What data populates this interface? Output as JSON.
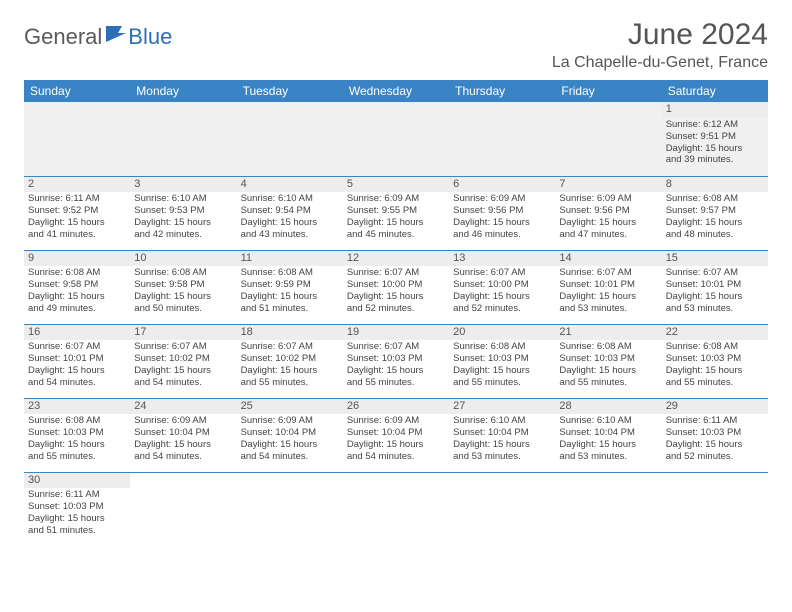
{
  "logo": {
    "part1": "General",
    "part2": "Blue"
  },
  "title": "June 2024",
  "location": "La Chapelle-du-Genet, France",
  "colors": {
    "header_bg": "#3a84c6",
    "header_text": "#ffffff",
    "logo_gray": "#5a5a5a",
    "logo_blue": "#2d6fb5",
    "border": "#3a84c6",
    "daynum_bg": "#ededed"
  },
  "weekdays": [
    "Sunday",
    "Monday",
    "Tuesday",
    "Wednesday",
    "Thursday",
    "Friday",
    "Saturday"
  ],
  "weeks": [
    [
      null,
      null,
      null,
      null,
      null,
      null,
      {
        "n": "1",
        "sr": "Sunrise: 6:12 AM",
        "ss": "Sunset: 9:51 PM",
        "d1": "Daylight: 15 hours",
        "d2": "and 39 minutes."
      }
    ],
    [
      {
        "n": "2",
        "sr": "Sunrise: 6:11 AM",
        "ss": "Sunset: 9:52 PM",
        "d1": "Daylight: 15 hours",
        "d2": "and 41 minutes."
      },
      {
        "n": "3",
        "sr": "Sunrise: 6:10 AM",
        "ss": "Sunset: 9:53 PM",
        "d1": "Daylight: 15 hours",
        "d2": "and 42 minutes."
      },
      {
        "n": "4",
        "sr": "Sunrise: 6:10 AM",
        "ss": "Sunset: 9:54 PM",
        "d1": "Daylight: 15 hours",
        "d2": "and 43 minutes."
      },
      {
        "n": "5",
        "sr": "Sunrise: 6:09 AM",
        "ss": "Sunset: 9:55 PM",
        "d1": "Daylight: 15 hours",
        "d2": "and 45 minutes."
      },
      {
        "n": "6",
        "sr": "Sunrise: 6:09 AM",
        "ss": "Sunset: 9:56 PM",
        "d1": "Daylight: 15 hours",
        "d2": "and 46 minutes."
      },
      {
        "n": "7",
        "sr": "Sunrise: 6:09 AM",
        "ss": "Sunset: 9:56 PM",
        "d1": "Daylight: 15 hours",
        "d2": "and 47 minutes."
      },
      {
        "n": "8",
        "sr": "Sunrise: 6:08 AM",
        "ss": "Sunset: 9:57 PM",
        "d1": "Daylight: 15 hours",
        "d2": "and 48 minutes."
      }
    ],
    [
      {
        "n": "9",
        "sr": "Sunrise: 6:08 AM",
        "ss": "Sunset: 9:58 PM",
        "d1": "Daylight: 15 hours",
        "d2": "and 49 minutes."
      },
      {
        "n": "10",
        "sr": "Sunrise: 6:08 AM",
        "ss": "Sunset: 9:58 PM",
        "d1": "Daylight: 15 hours",
        "d2": "and 50 minutes."
      },
      {
        "n": "11",
        "sr": "Sunrise: 6:08 AM",
        "ss": "Sunset: 9:59 PM",
        "d1": "Daylight: 15 hours",
        "d2": "and 51 minutes."
      },
      {
        "n": "12",
        "sr": "Sunrise: 6:07 AM",
        "ss": "Sunset: 10:00 PM",
        "d1": "Daylight: 15 hours",
        "d2": "and 52 minutes."
      },
      {
        "n": "13",
        "sr": "Sunrise: 6:07 AM",
        "ss": "Sunset: 10:00 PM",
        "d1": "Daylight: 15 hours",
        "d2": "and 52 minutes."
      },
      {
        "n": "14",
        "sr": "Sunrise: 6:07 AM",
        "ss": "Sunset: 10:01 PM",
        "d1": "Daylight: 15 hours",
        "d2": "and 53 minutes."
      },
      {
        "n": "15",
        "sr": "Sunrise: 6:07 AM",
        "ss": "Sunset: 10:01 PM",
        "d1": "Daylight: 15 hours",
        "d2": "and 53 minutes."
      }
    ],
    [
      {
        "n": "16",
        "sr": "Sunrise: 6:07 AM",
        "ss": "Sunset: 10:01 PM",
        "d1": "Daylight: 15 hours",
        "d2": "and 54 minutes."
      },
      {
        "n": "17",
        "sr": "Sunrise: 6:07 AM",
        "ss": "Sunset: 10:02 PM",
        "d1": "Daylight: 15 hours",
        "d2": "and 54 minutes."
      },
      {
        "n": "18",
        "sr": "Sunrise: 6:07 AM",
        "ss": "Sunset: 10:02 PM",
        "d1": "Daylight: 15 hours",
        "d2": "and 55 minutes."
      },
      {
        "n": "19",
        "sr": "Sunrise: 6:07 AM",
        "ss": "Sunset: 10:03 PM",
        "d1": "Daylight: 15 hours",
        "d2": "and 55 minutes."
      },
      {
        "n": "20",
        "sr": "Sunrise: 6:08 AM",
        "ss": "Sunset: 10:03 PM",
        "d1": "Daylight: 15 hours",
        "d2": "and 55 minutes."
      },
      {
        "n": "21",
        "sr": "Sunrise: 6:08 AM",
        "ss": "Sunset: 10:03 PM",
        "d1": "Daylight: 15 hours",
        "d2": "and 55 minutes."
      },
      {
        "n": "22",
        "sr": "Sunrise: 6:08 AM",
        "ss": "Sunset: 10:03 PM",
        "d1": "Daylight: 15 hours",
        "d2": "and 55 minutes."
      }
    ],
    [
      {
        "n": "23",
        "sr": "Sunrise: 6:08 AM",
        "ss": "Sunset: 10:03 PM",
        "d1": "Daylight: 15 hours",
        "d2": "and 55 minutes."
      },
      {
        "n": "24",
        "sr": "Sunrise: 6:09 AM",
        "ss": "Sunset: 10:04 PM",
        "d1": "Daylight: 15 hours",
        "d2": "and 54 minutes."
      },
      {
        "n": "25",
        "sr": "Sunrise: 6:09 AM",
        "ss": "Sunset: 10:04 PM",
        "d1": "Daylight: 15 hours",
        "d2": "and 54 minutes."
      },
      {
        "n": "26",
        "sr": "Sunrise: 6:09 AM",
        "ss": "Sunset: 10:04 PM",
        "d1": "Daylight: 15 hours",
        "d2": "and 54 minutes."
      },
      {
        "n": "27",
        "sr": "Sunrise: 6:10 AM",
        "ss": "Sunset: 10:04 PM",
        "d1": "Daylight: 15 hours",
        "d2": "and 53 minutes."
      },
      {
        "n": "28",
        "sr": "Sunrise: 6:10 AM",
        "ss": "Sunset: 10:04 PM",
        "d1": "Daylight: 15 hours",
        "d2": "and 53 minutes."
      },
      {
        "n": "29",
        "sr": "Sunrise: 6:11 AM",
        "ss": "Sunset: 10:03 PM",
        "d1": "Daylight: 15 hours",
        "d2": "and 52 minutes."
      }
    ],
    [
      {
        "n": "30",
        "sr": "Sunrise: 6:11 AM",
        "ss": "Sunset: 10:03 PM",
        "d1": "Daylight: 15 hours",
        "d2": "and 51 minutes."
      },
      null,
      null,
      null,
      null,
      null,
      null
    ]
  ]
}
